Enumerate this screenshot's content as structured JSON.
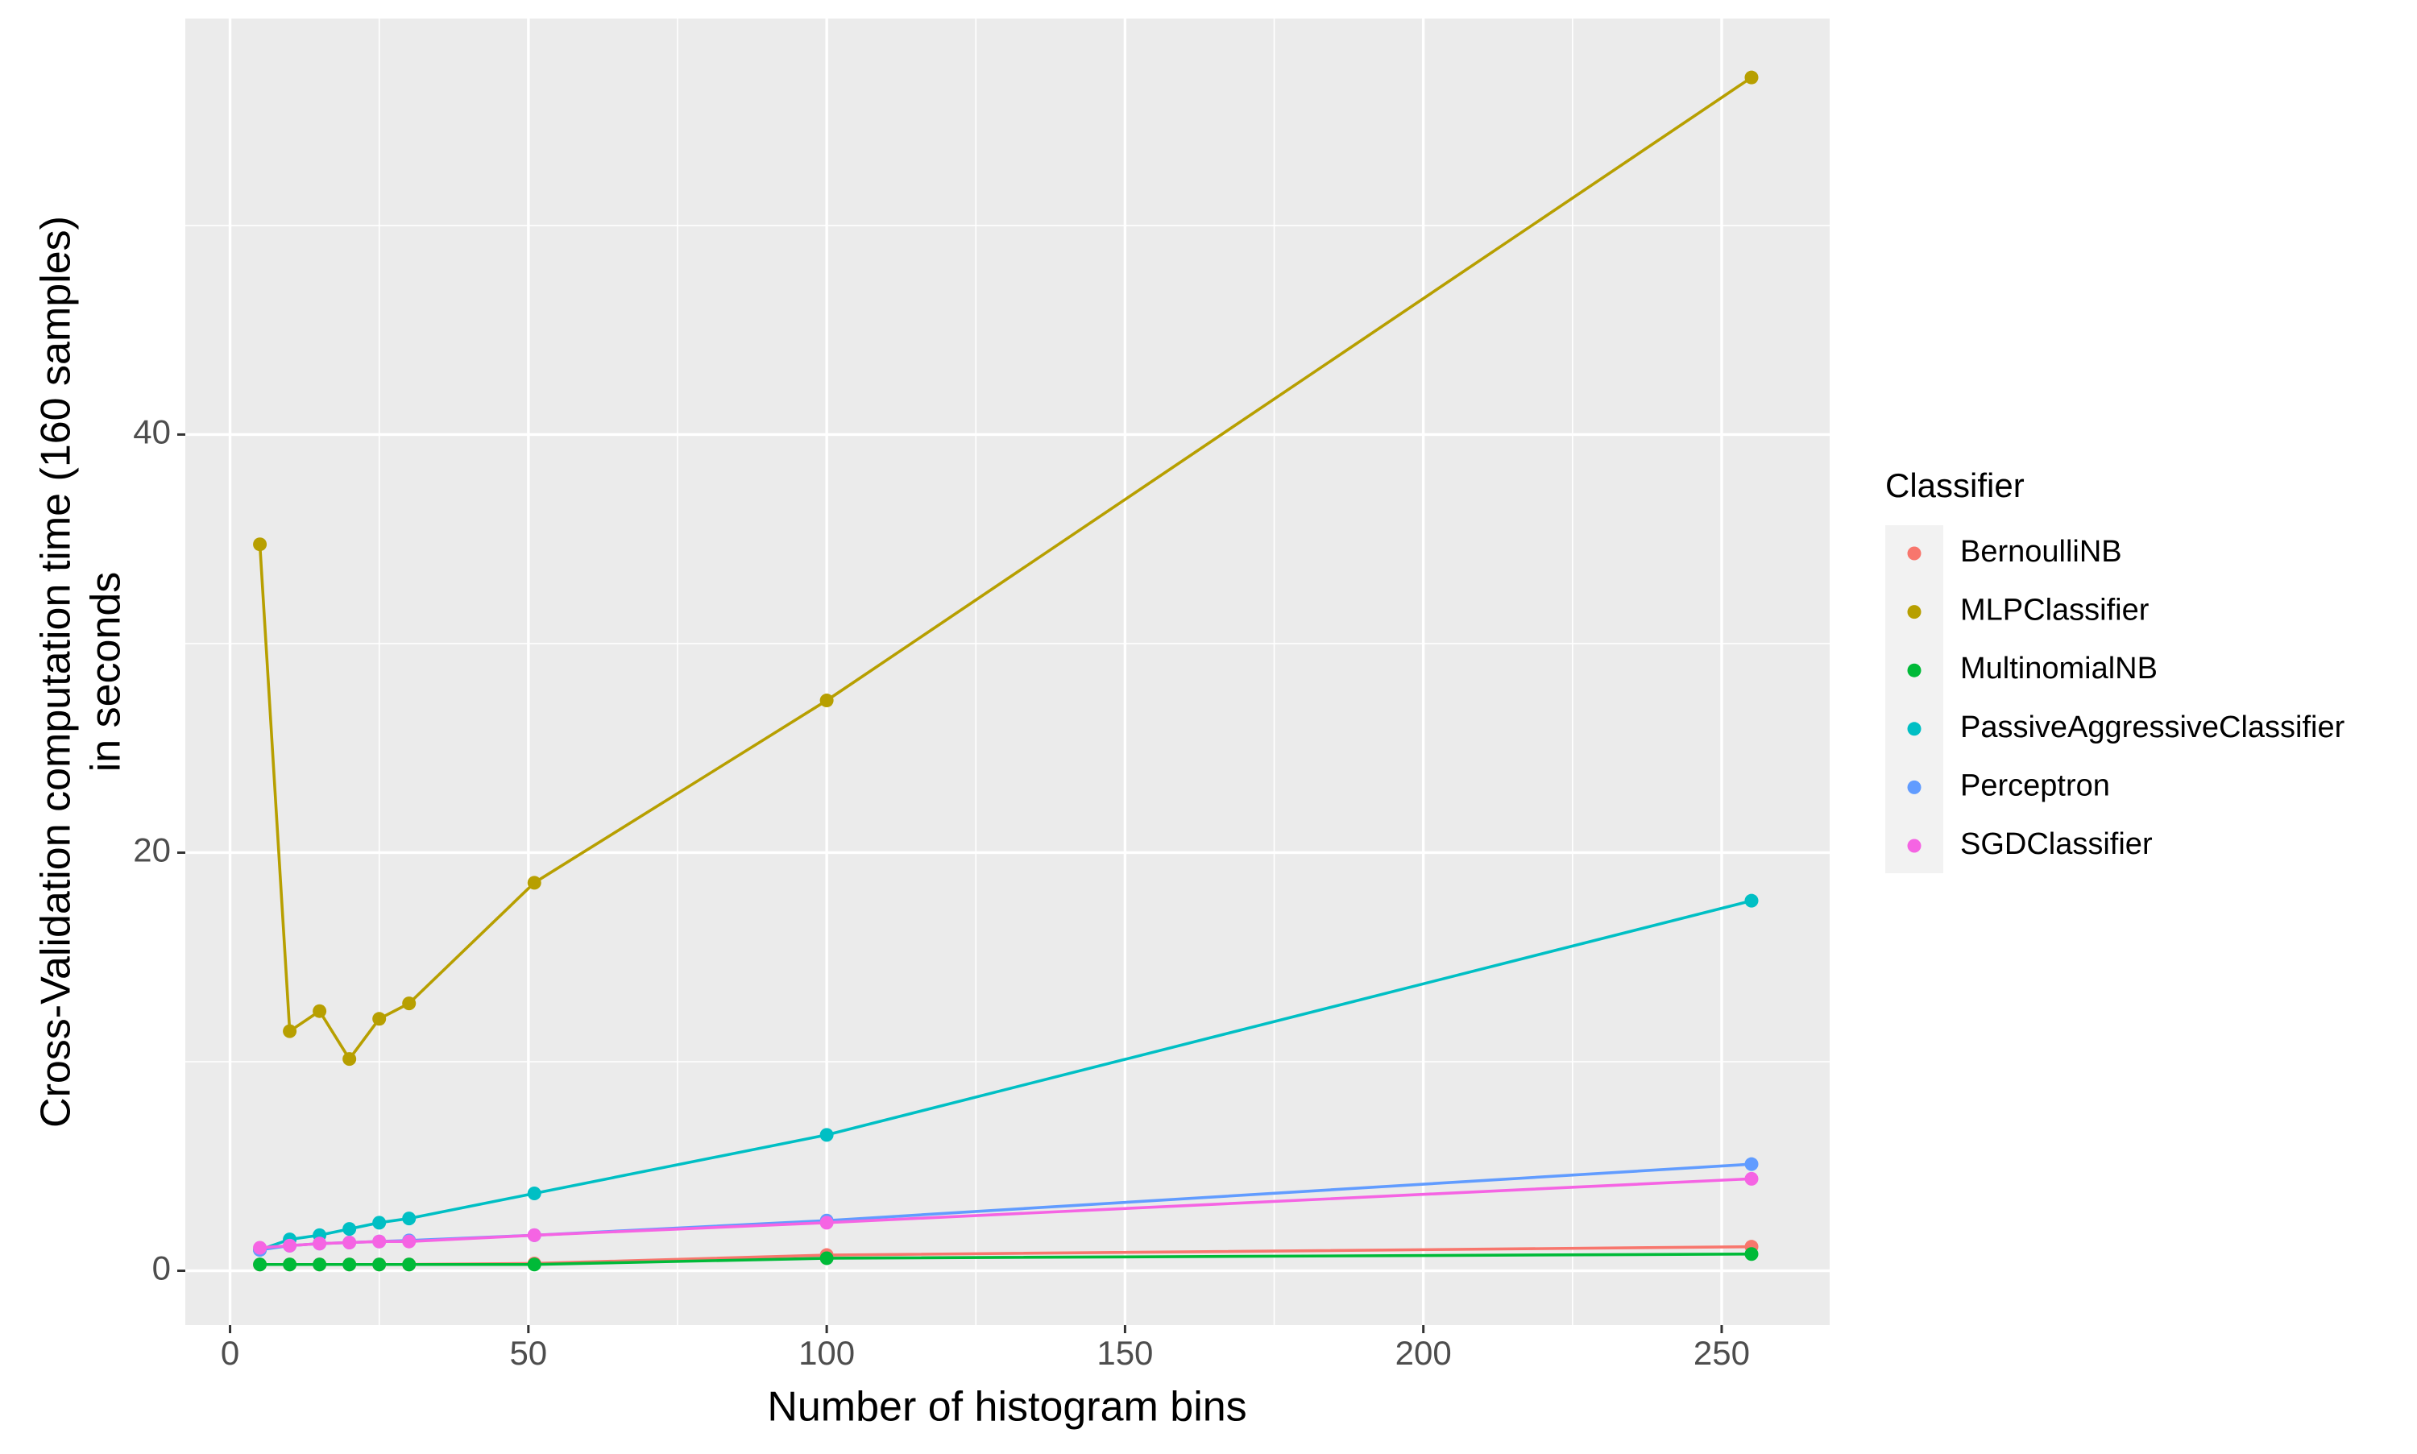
{
  "chart_data": {
    "type": "line",
    "xlabel": "Number of histogram bins",
    "ylabel": [
      "Cross-Validation computation time (160 samples)",
      "in seconds"
    ],
    "legend_title": "Classifier",
    "legend": "right",
    "grid": true,
    "x": [
      5,
      10,
      15,
      20,
      25,
      30,
      51,
      100,
      255
    ],
    "xlim": [
      -7.5,
      268.1
    ],
    "ylim": [
      -2.6,
      59.9
    ],
    "xticks": [
      0,
      50,
      100,
      150,
      200,
      250
    ],
    "yticks": [
      0,
      20,
      40
    ],
    "xminor": [
      25,
      75,
      125,
      175,
      225
    ],
    "yminor": [
      10,
      30,
      50
    ],
    "series": [
      {
        "name": "BernoulliNB",
        "color": "#F8766D",
        "values": [
          0.3,
          0.3,
          0.3,
          0.3,
          0.3,
          0.3,
          0.35,
          0.75,
          1.15
        ]
      },
      {
        "name": "MLPClassifier",
        "color": "#B79F00",
        "values": [
          34.75,
          11.46,
          12.42,
          10.13,
          12.05,
          12.79,
          18.56,
          27.28,
          57.08
        ]
      },
      {
        "name": "MultinomialNB",
        "color": "#00BA38",
        "values": [
          0.3,
          0.3,
          0.3,
          0.3,
          0.3,
          0.3,
          0.3,
          0.6,
          0.8
        ]
      },
      {
        "name": "PassiveAggressiveClassifier",
        "color": "#00BFC4",
        "values": [
          1.0,
          1.5,
          1.7,
          2.0,
          2.3,
          2.5,
          3.7,
          6.5,
          17.7
        ]
      },
      {
        "name": "Perceptron",
        "color": "#619CFF",
        "values": [
          1.0,
          1.2,
          1.3,
          1.35,
          1.4,
          1.45,
          1.7,
          2.4,
          5.1
        ]
      },
      {
        "name": "SGDClassifier",
        "color": "#F564E3",
        "values": [
          1.1,
          1.2,
          1.3,
          1.35,
          1.4,
          1.4,
          1.7,
          2.3,
          4.4
        ]
      }
    ]
  }
}
